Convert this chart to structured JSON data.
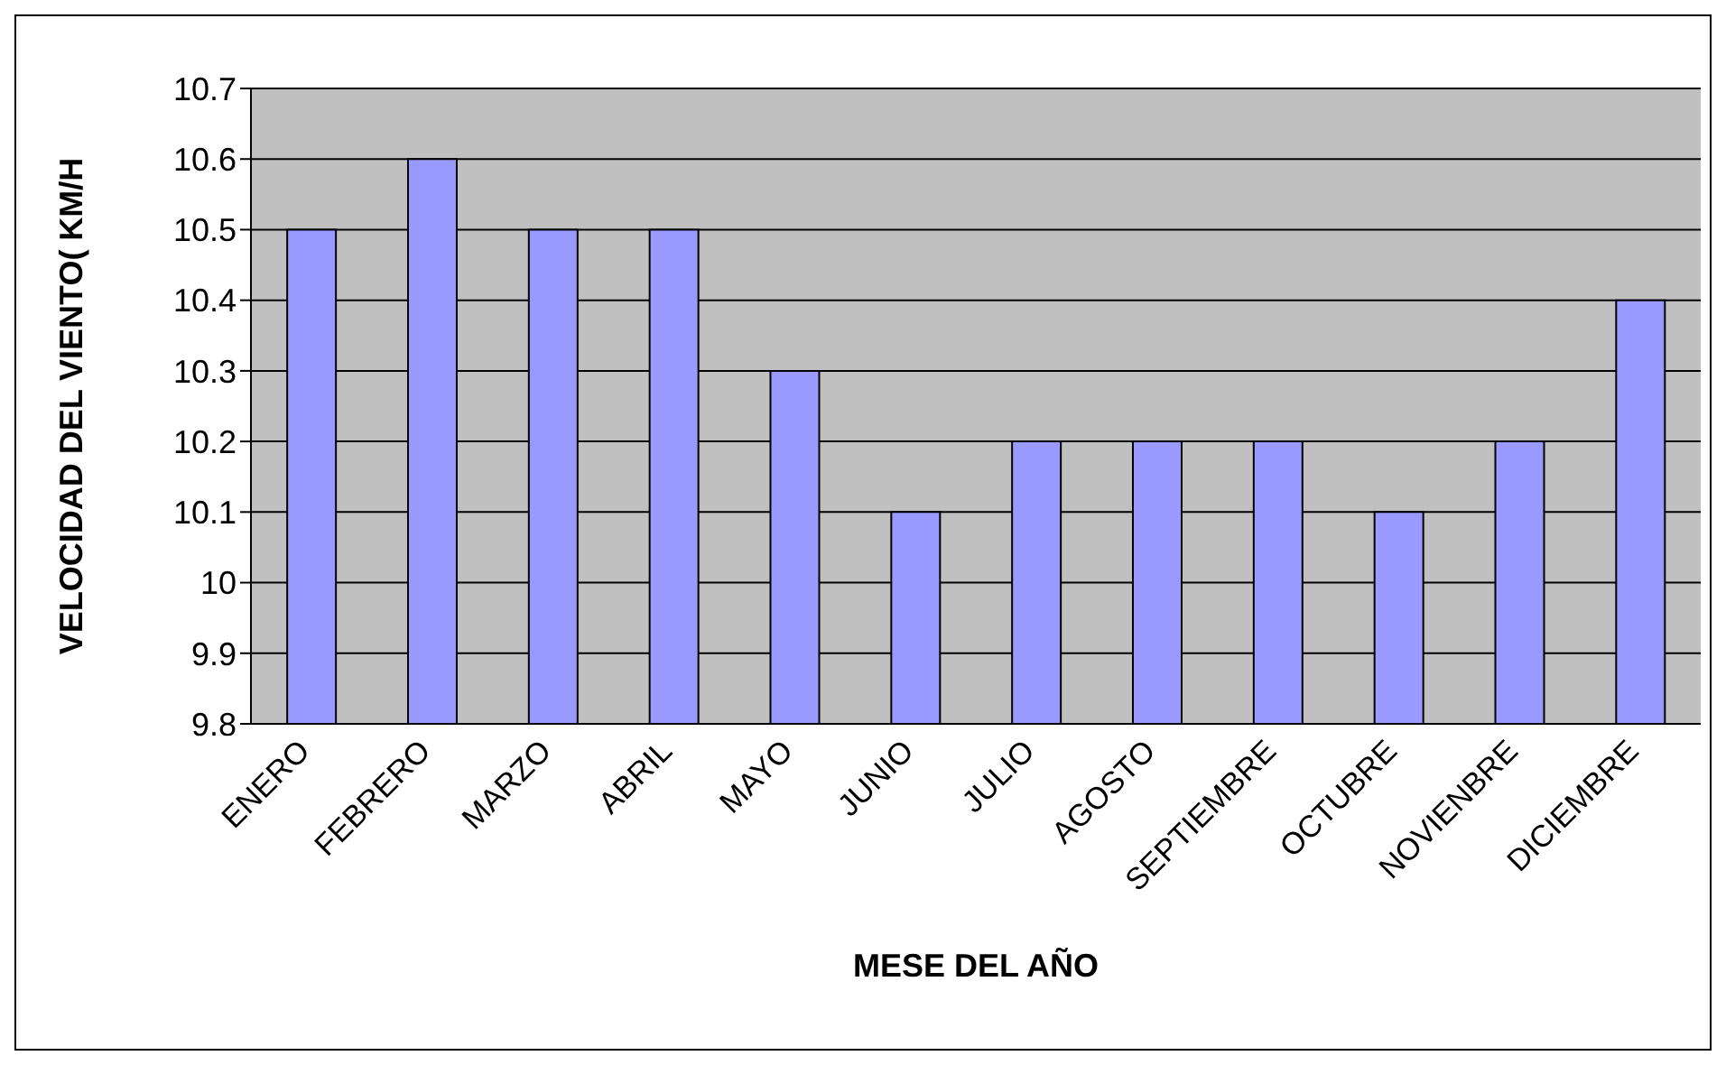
{
  "chart_data": {
    "type": "bar",
    "xlabel": "MESE DEL AÑO",
    "ylabel": "VELOCIDAD DEL VIENTO( KM/H",
    "categories": [
      "ENERO",
      "FEBRERO",
      "MARZO",
      "ABRIL",
      "MAYO",
      "JUNIO",
      "JULIO",
      "AGOSTO",
      "SEPTIEMBRE",
      "OCTUBRE",
      "NOVIENBRE",
      "DICIEMBRE"
    ],
    "values": [
      10.5,
      10.6,
      10.5,
      10.5,
      10.3,
      10.1,
      10.2,
      10.2,
      10.2,
      10.1,
      10.2,
      10.4
    ],
    "color": "#9999ff",
    "ylim": [
      9.8,
      10.7
    ],
    "yticks": [
      9.8,
      9.9,
      10,
      10.1,
      10.2,
      10.3,
      10.4,
      10.5,
      10.6,
      10.7
    ],
    "grid": "y"
  }
}
